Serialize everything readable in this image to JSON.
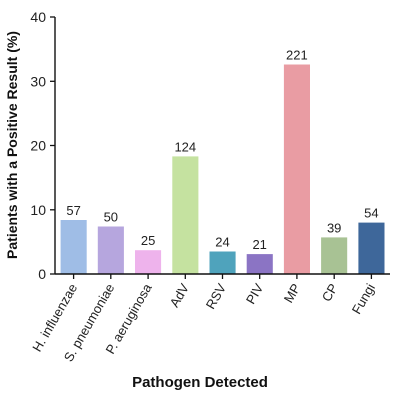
{
  "chart_data": {
    "type": "bar",
    "xlabel": "Pathogen Detected",
    "ylabel": "Patients with a Positive Result (%)",
    "ylim": [
      0,
      40
    ],
    "yticks": [
      0,
      10,
      20,
      30,
      40
    ],
    "categories": [
      "H. influenzae",
      "S. pneumoniae",
      "P. aeruginosa",
      "AdV",
      "RSV",
      "PIV",
      "MP",
      "CP",
      "Fungi"
    ],
    "values": [
      8.4,
      7.4,
      3.7,
      18.3,
      3.5,
      3.1,
      32.6,
      5.7,
      8.0
    ],
    "data_labels": [
      "57",
      "50",
      "25",
      "124",
      "24",
      "21",
      "221",
      "39",
      "54"
    ],
    "colors": [
      "#9fbde6",
      "#b6a6de",
      "#eeb3ec",
      "#c5e2a0",
      "#4fa3bc",
      "#8b74c4",
      "#e99ca3",
      "#a8c294",
      "#3e679a"
    ],
    "grid": false,
    "legend": "none"
  }
}
